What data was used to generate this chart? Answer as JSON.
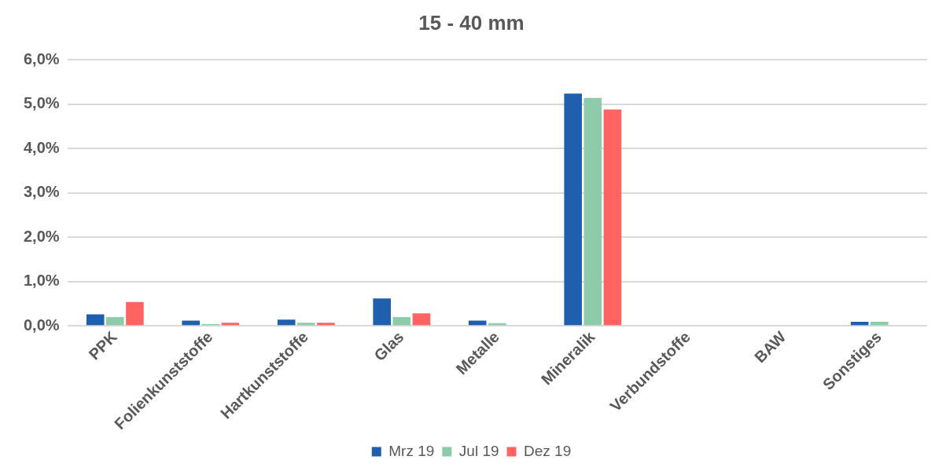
{
  "chart_data": {
    "type": "bar",
    "title": "15 - 40 mm",
    "categories": [
      "PPK",
      "Folienkunststoffe",
      "Hartkunststoffe",
      "Glas",
      "Metalle",
      "Mineralik",
      "Verbundstoffe",
      "BAW",
      "Sonstiges"
    ],
    "series": [
      {
        "name": "Mrz 19",
        "color": "#1f5fad",
        "values": [
          0.26,
          0.12,
          0.14,
          0.62,
          0.12,
          5.24,
          0,
          0,
          0.09
        ]
      },
      {
        "name": "Jul 19",
        "color": "#8ecbab",
        "values": [
          0.2,
          0.04,
          0.07,
          0.2,
          0.06,
          5.14,
          0,
          0,
          0.09
        ]
      },
      {
        "name": "Dez 19",
        "color": "#ff6362",
        "values": [
          0.54,
          0.07,
          0.07,
          0.28,
          0,
          4.88,
          0,
          0,
          0
        ]
      }
    ],
    "ylim": [
      0,
      6
    ],
    "yticks": [
      {
        "value": 0,
        "label": "0,0%"
      },
      {
        "value": 1,
        "label": "1,0%"
      },
      {
        "value": 2,
        "label": "2,0%"
      },
      {
        "value": 3,
        "label": "3,0%"
      },
      {
        "value": 4,
        "label": "4,0%"
      },
      {
        "value": 5,
        "label": "5,0%"
      },
      {
        "value": 6,
        "label": "6,0%"
      }
    ],
    "grid": "y",
    "legend": "bottom"
  }
}
